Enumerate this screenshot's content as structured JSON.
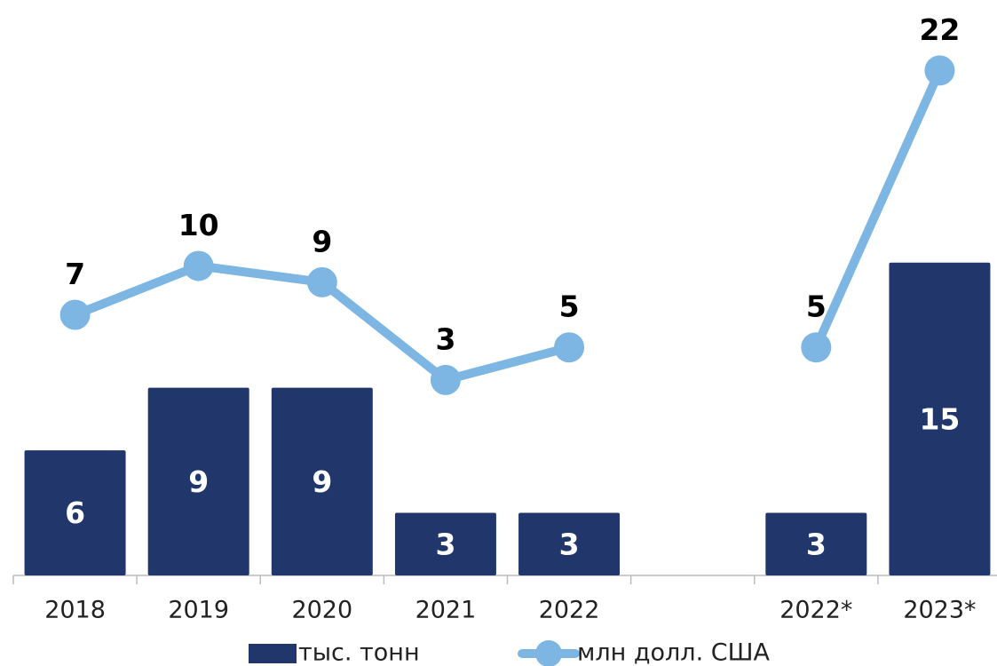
{
  "chart_data": {
    "type": "bar-line",
    "categories": [
      "2018",
      "2019",
      "2020",
      "2021",
      "2022",
      null,
      "2022*",
      "2023*"
    ],
    "series": [
      {
        "name": "тыс. тонн",
        "type": "bar",
        "color": "#21366b",
        "values": [
          6,
          9,
          9,
          3,
          3,
          null,
          3,
          15
        ]
      },
      {
        "name": "млн долл. США",
        "type": "line",
        "axis": "y2",
        "color": "#7db6e3",
        "values": [
          7,
          10,
          9,
          3,
          5,
          null,
          5,
          22
        ]
      }
    ],
    "ylim": [
      0,
      25
    ],
    "y2lim": [
      -9,
      23
    ]
  }
}
